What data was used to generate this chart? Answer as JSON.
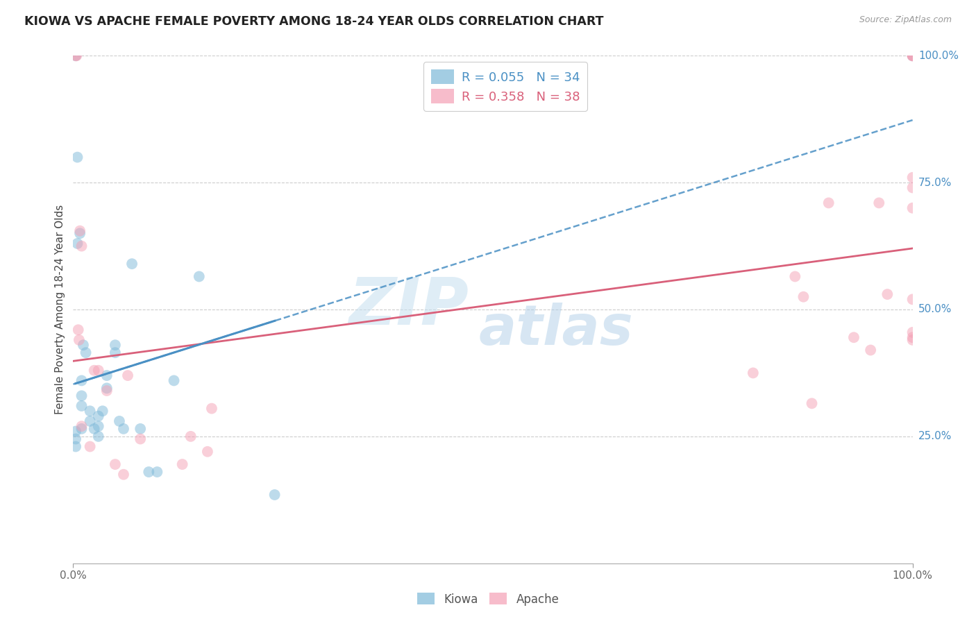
{
  "title": "KIOWA VS APACHE FEMALE POVERTY AMONG 18-24 YEAR OLDS CORRELATION CHART",
  "source": "Source: ZipAtlas.com",
  "ylabel": "Female Poverty Among 18-24 Year Olds",
  "legend_label1": "Kiowa",
  "legend_label2": "Apache",
  "R1": 0.055,
  "N1": 34,
  "R2": 0.358,
  "N2": 38,
  "kiowa_color": "#7db8d8",
  "apache_color": "#f4a0b5",
  "kiowa_line_color": "#4a90c4",
  "apache_line_color": "#d9607a",
  "right_axis_color": "#4a8fc4",
  "background_color": "#ffffff",
  "grid_color": "#cccccc",
  "watermark_zip_color": "#c5dff0",
  "watermark_atlas_color": "#b0cfe8",
  "xlim": [
    0,
    1
  ],
  "ylim": [
    0,
    1
  ],
  "kiowa_x": [
    0.003,
    0.005,
    0.005,
    0.008,
    0.01,
    0.01,
    0.01,
    0.01,
    0.012,
    0.015,
    0.02,
    0.02,
    0.025,
    0.03,
    0.03,
    0.03,
    0.035,
    0.04,
    0.04,
    0.05,
    0.05,
    0.055,
    0.06,
    0.07,
    0.08,
    0.09,
    0.1,
    0.12,
    0.15,
    0.24,
    0.003,
    0.003,
    0.003,
    1.0
  ],
  "kiowa_y": [
    1.0,
    0.8,
    0.63,
    0.65,
    0.36,
    0.33,
    0.31,
    0.265,
    0.43,
    0.415,
    0.28,
    0.3,
    0.265,
    0.27,
    0.25,
    0.29,
    0.3,
    0.37,
    0.345,
    0.415,
    0.43,
    0.28,
    0.265,
    0.59,
    0.265,
    0.18,
    0.18,
    0.36,
    0.565,
    0.135,
    0.26,
    0.245,
    0.23,
    1.0
  ],
  "apache_x": [
    0.003,
    0.004,
    0.006,
    0.007,
    0.008,
    0.01,
    0.01,
    0.02,
    0.025,
    0.03,
    0.04,
    0.05,
    0.06,
    0.065,
    0.08,
    0.13,
    0.14,
    0.16,
    0.165,
    0.81,
    0.86,
    0.87,
    0.88,
    0.9,
    0.93,
    0.95,
    0.96,
    0.97,
    1.0,
    1.0,
    1.0,
    1.0,
    1.0,
    1.0,
    1.0,
    1.0,
    1.0,
    1.0
  ],
  "apache_y": [
    1.0,
    1.0,
    0.46,
    0.44,
    0.655,
    0.625,
    0.27,
    0.23,
    0.38,
    0.38,
    0.34,
    0.195,
    0.175,
    0.37,
    0.245,
    0.195,
    0.25,
    0.22,
    0.305,
    0.375,
    0.565,
    0.525,
    0.315,
    0.71,
    0.445,
    0.42,
    0.71,
    0.53,
    1.0,
    1.0,
    1.0,
    0.76,
    0.74,
    0.52,
    0.7,
    0.455,
    0.445,
    0.44
  ]
}
